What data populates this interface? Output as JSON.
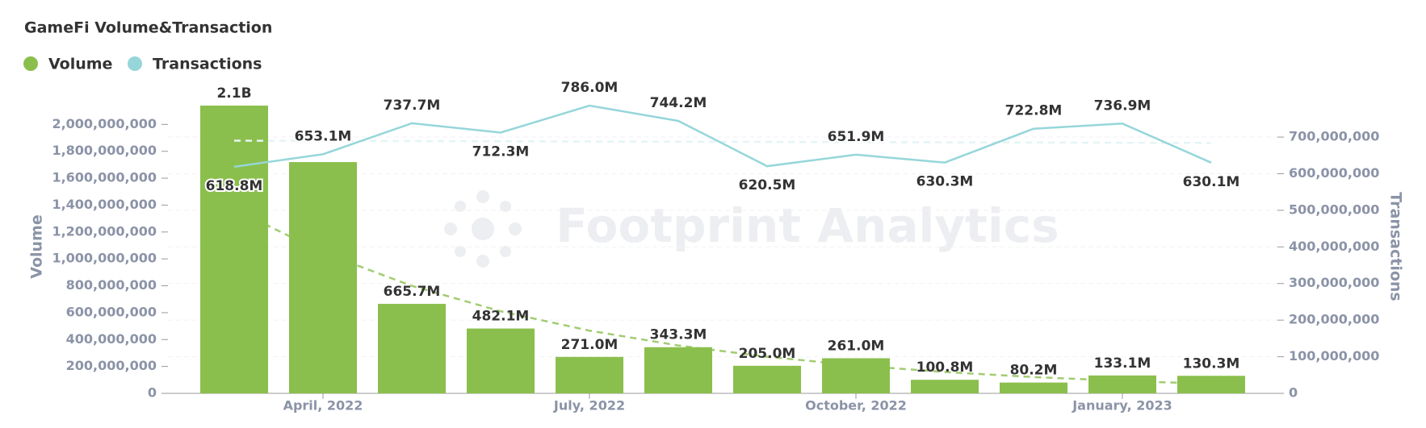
{
  "chart_data": {
    "type": "bar_line",
    "title": "GameFi Volume&Transaction",
    "watermark": "Footprint Analytics",
    "y_label": "Volume",
    "y2_label": "Transactions",
    "categories": [
      null,
      "April, 2022",
      null,
      null,
      "July, 2022",
      null,
      null,
      "October, 2022",
      null,
      null,
      "January, 2023",
      null
    ],
    "series": [
      {
        "name": "Volume",
        "type": "bar",
        "color": "#8bbf4d",
        "axis": "y",
        "values": [
          2140000000,
          1720000000,
          665700000,
          482100000,
          271000000,
          343300000,
          205000000,
          261000000,
          100800000,
          80200000,
          133100000,
          130300000
        ],
        "value_labels": [
          "2.1B",
          null,
          "665.7M",
          "482.1M",
          "271.0M",
          "343.3M",
          "205.0M",
          "261.0M",
          "100.8M",
          "80.2M",
          "133.1M",
          "130.3M"
        ]
      },
      {
        "name": "Transactions",
        "type": "line",
        "color": "#96d6da",
        "axis": "y2",
        "values": [
          618800000,
          653100000,
          737700000,
          712300000,
          786000000,
          744200000,
          620500000,
          651900000,
          630300000,
          722800000,
          736900000,
          630100000
        ],
        "value_labels": [
          "618.8M",
          "653.1M",
          "737.7M",
          "712.3M",
          "786.0M",
          "744.2M",
          "620.5M",
          "651.9M",
          "630.3M",
          "722.8M",
          "736.9M",
          "630.1M"
        ]
      }
    ],
    "ylim": [
      0,
      2200000000
    ],
    "yticks": [
      0,
      {
        "value": 200000000,
        "label": "200,000,000"
      },
      {
        "value": 400000000,
        "label": "400,000,000"
      },
      {
        "value": 600000000,
        "label": "600,000,000"
      },
      {
        "value": 800000000,
        "label": "800,000,000"
      },
      {
        "value": 1000000000,
        "label": "1,000,000,000"
      },
      {
        "value": 1200000000,
        "label": "1,200,000,000"
      },
      {
        "value": 1400000000,
        "label": "1,400,000,000"
      },
      {
        "value": 1600000000,
        "label": "1,600,000,000"
      },
      {
        "value": 1800000000,
        "label": "1,800,000,000"
      },
      {
        "value": 2000000000,
        "label": "2,000,000,000"
      }
    ],
    "y2lim": [
      0,
      808000000
    ],
    "y2ticks": [
      0,
      {
        "value": 100000000,
        "label": "100,000,000"
      },
      {
        "value": 200000000,
        "label": "200,000,000"
      },
      {
        "value": 300000000,
        "label": "300,000,000"
      },
      {
        "value": 400000000,
        "label": "400,000,000"
      },
      {
        "value": 500000000,
        "label": "500,000,000"
      },
      {
        "value": 600000000,
        "label": "600,000,000"
      },
      {
        "value": 700000000,
        "label": "700,000,000"
      }
    ],
    "grid": true,
    "trendlines": true,
    "legend": "top-left"
  }
}
